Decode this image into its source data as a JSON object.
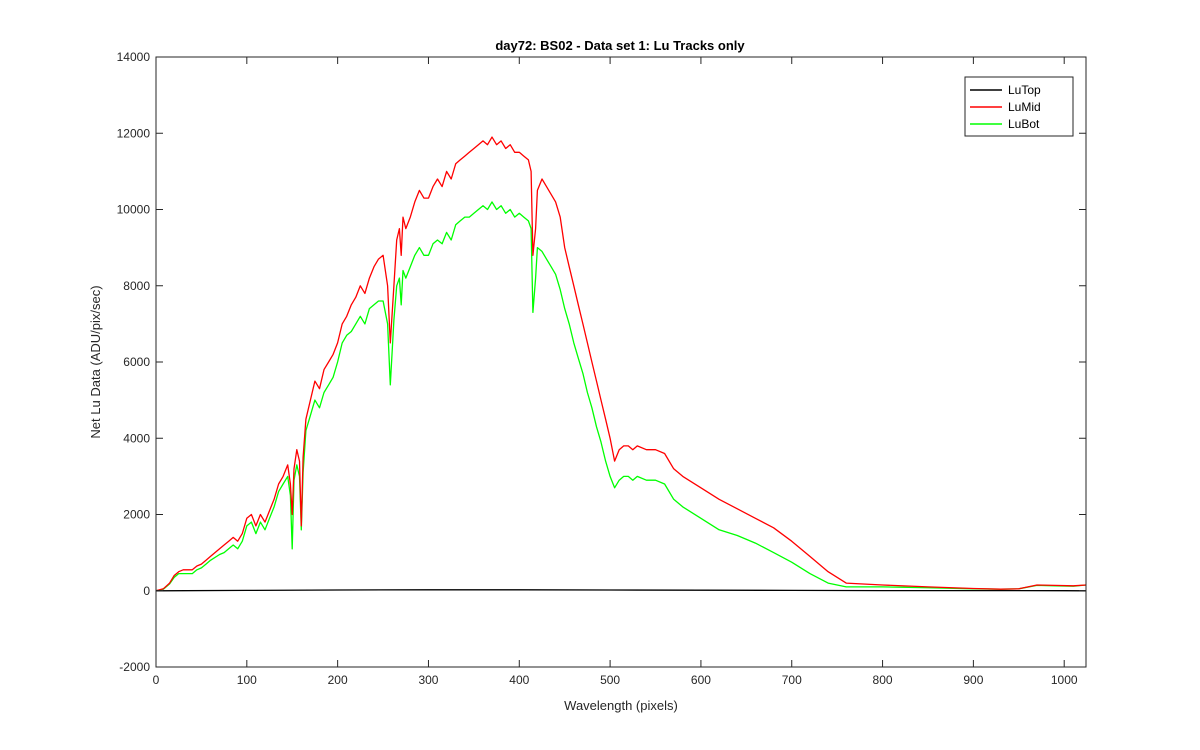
{
  "chart_data": {
    "type": "line",
    "title": "day72: BS02 - Data set 1: Lu Tracks only",
    "xlabel": "Wavelength (pixels)",
    "ylabel": "Net Lu Data (ADU/pix/sec)",
    "xlim": [
      0,
      1024
    ],
    "ylim": [
      -2000,
      14000
    ],
    "xticks": [
      0,
      100,
      200,
      300,
      400,
      500,
      600,
      700,
      800,
      900,
      1000
    ],
    "yticks": [
      -2000,
      0,
      2000,
      4000,
      6000,
      8000,
      10000,
      12000,
      14000
    ],
    "grid": false,
    "legend_position": "top-right",
    "series": [
      {
        "name": "LuTop",
        "color": "#000000",
        "x": [
          0,
          100,
          200,
          300,
          400,
          500,
          600,
          700,
          800,
          900,
          1000,
          1024
        ],
        "y": [
          0,
          10,
          20,
          25,
          25,
          20,
          15,
          10,
          5,
          3,
          2,
          0
        ]
      },
      {
        "name": "LuMid",
        "color": "#ff0000",
        "x": [
          0,
          8,
          15,
          20,
          25,
          30,
          40,
          45,
          50,
          55,
          60,
          70,
          75,
          80,
          85,
          90,
          95,
          100,
          105,
          110,
          115,
          120,
          125,
          130,
          135,
          140,
          145,
          148,
          150,
          152,
          155,
          158,
          160,
          162,
          165,
          170,
          175,
          180,
          185,
          190,
          195,
          200,
          205,
          210,
          215,
          220,
          225,
          230,
          235,
          240,
          245,
          250,
          255,
          258,
          262,
          265,
          268,
          270,
          272,
          275,
          280,
          285,
          290,
          295,
          300,
          305,
          310,
          315,
          320,
          325,
          330,
          335,
          340,
          345,
          350,
          355,
          360,
          365,
          370,
          375,
          380,
          385,
          390,
          395,
          400,
          405,
          410,
          413,
          415,
          418,
          420,
          425,
          430,
          435,
          440,
          445,
          450,
          455,
          460,
          465,
          470,
          475,
          480,
          485,
          490,
          495,
          500,
          505,
          510,
          515,
          520,
          525,
          530,
          540,
          550,
          560,
          570,
          580,
          600,
          620,
          640,
          660,
          680,
          700,
          720,
          740,
          760,
          800,
          850,
          900,
          930,
          950,
          970,
          990,
          1010,
          1024
        ],
        "y": [
          0,
          50,
          200,
          400,
          500,
          550,
          550,
          650,
          700,
          800,
          900,
          1100,
          1200,
          1300,
          1400,
          1300,
          1500,
          1900,
          2000,
          1700,
          2000,
          1800,
          2100,
          2400,
          2800,
          3000,
          3300,
          2800,
          2000,
          3200,
          3700,
          3400,
          1700,
          3500,
          4500,
          5000,
          5500,
          5300,
          5800,
          6000,
          6200,
          6500,
          7000,
          7200,
          7500,
          7700,
          8000,
          7800,
          8200,
          8500,
          8700,
          8800,
          8000,
          6500,
          8000,
          9200,
          9500,
          8800,
          9800,
          9500,
          9800,
          10200,
          10500,
          10300,
          10300,
          10600,
          10800,
          10600,
          11000,
          10800,
          11200,
          11300,
          11400,
          11500,
          11600,
          11700,
          11800,
          11700,
          11900,
          11700,
          11800,
          11600,
          11700,
          11500,
          11500,
          11400,
          11300,
          11000,
          8800,
          9500,
          10500,
          10800,
          10600,
          10400,
          10200,
          9800,
          9000,
          8500,
          8000,
          7500,
          7000,
          6500,
          6000,
          5500,
          5000,
          4500,
          4000,
          3400,
          3700,
          3800,
          3800,
          3700,
          3800,
          3700,
          3700,
          3600,
          3200,
          3000,
          2700,
          2400,
          2150,
          1900,
          1650,
          1300,
          900,
          500,
          200,
          150,
          100,
          60,
          40,
          50,
          150,
          140,
          130,
          150
        ]
      },
      {
        "name": "LuBot",
        "color": "#00ff00",
        "x": [
          0,
          8,
          15,
          20,
          25,
          30,
          40,
          45,
          50,
          55,
          60,
          70,
          75,
          80,
          85,
          90,
          95,
          100,
          105,
          110,
          115,
          120,
          125,
          130,
          135,
          140,
          145,
          148,
          150,
          152,
          155,
          158,
          160,
          162,
          165,
          170,
          175,
          180,
          185,
          190,
          195,
          200,
          205,
          210,
          215,
          220,
          225,
          230,
          235,
          240,
          245,
          250,
          255,
          258,
          262,
          265,
          268,
          270,
          272,
          275,
          280,
          285,
          290,
          295,
          300,
          305,
          310,
          315,
          320,
          325,
          330,
          335,
          340,
          345,
          350,
          355,
          360,
          365,
          370,
          375,
          380,
          385,
          390,
          395,
          400,
          405,
          410,
          413,
          415,
          418,
          420,
          425,
          430,
          435,
          440,
          445,
          450,
          455,
          460,
          465,
          470,
          475,
          480,
          485,
          490,
          495,
          500,
          505,
          510,
          515,
          520,
          525,
          530,
          540,
          550,
          560,
          570,
          580,
          600,
          620,
          640,
          660,
          680,
          700,
          720,
          740,
          760,
          800,
          850,
          900,
          930,
          950,
          970,
          990,
          1010,
          1024
        ],
        "y": [
          0,
          40,
          180,
          350,
          450,
          450,
          450,
          550,
          600,
          700,
          800,
          950,
          1000,
          1100,
          1200,
          1100,
          1300,
          1700,
          1800,
          1500,
          1800,
          1600,
          1900,
          2200,
          2600,
          2800,
          3000,
          2500,
          1100,
          2900,
          3300,
          3000,
          1600,
          3100,
          4200,
          4600,
          5000,
          4800,
          5200,
          5400,
          5600,
          6000,
          6500,
          6700,
          6800,
          7000,
          7200,
          7000,
          7400,
          7500,
          7600,
          7600,
          7000,
          5400,
          7100,
          8000,
          8200,
          7500,
          8400,
          8200,
          8500,
          8800,
          9000,
          8800,
          8800,
          9100,
          9200,
          9100,
          9400,
          9200,
          9600,
          9700,
          9800,
          9800,
          9900,
          10000,
          10100,
          10000,
          10200,
          10000,
          10100,
          9900,
          10000,
          9800,
          9900,
          9800,
          9700,
          9500,
          7300,
          8200,
          9000,
          8900,
          8700,
          8500,
          8300,
          7900,
          7400,
          7000,
          6500,
          6100,
          5700,
          5200,
          4800,
          4300,
          3900,
          3400,
          3000,
          2700,
          2900,
          3000,
          3000,
          2900,
          3000,
          2900,
          2900,
          2800,
          2400,
          2200,
          1900,
          1600,
          1450,
          1250,
          1000,
          750,
          450,
          200,
          100,
          100,
          80,
          50,
          40,
          50,
          140,
          130,
          120,
          150
        ]
      }
    ]
  }
}
